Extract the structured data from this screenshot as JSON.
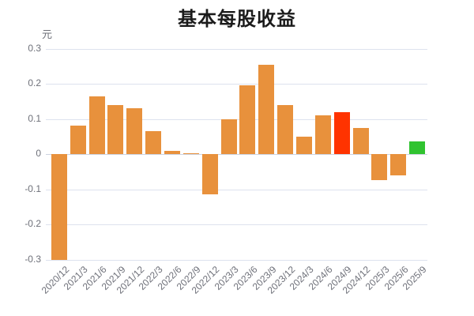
{
  "chart_data": {
    "type": "bar",
    "title": "基本每股收益",
    "unit_label": "元",
    "categories": [
      "2020/12",
      "2021/3",
      "2021/6",
      "2021/9",
      "2021/12",
      "2022/3",
      "2022/6",
      "2022/9",
      "2022/12",
      "2023/3",
      "2023/6",
      "2023/9",
      "2023/12",
      "2024/3",
      "2024/6",
      "2024/9",
      "2024/12",
      "2025/3",
      "2025/6",
      "2025/9"
    ],
    "series": [
      {
        "name": "基本每股收益",
        "values": [
          -0.3,
          0.08,
          0.165,
          0.14,
          0.13,
          0.065,
          0.01,
          0.002,
          -0.115,
          0.1,
          0.195,
          0.255,
          0.14,
          0.05,
          0.11,
          0.12,
          0.075,
          -0.075,
          -0.06,
          0.035
        ],
        "point_colors": [
          "#e8913c",
          "#e8913c",
          "#e8913c",
          "#e8913c",
          "#e8913c",
          "#e8913c",
          "#e8913c",
          "#e8913c",
          "#e8913c",
          "#e8913c",
          "#e8913c",
          "#e8913c",
          "#e8913c",
          "#e8913c",
          "#e8913c",
          "#ff3300",
          "#e8913c",
          "#e8913c",
          "#e8913c",
          "#30c330"
        ]
      }
    ],
    "xlabel": "",
    "ylabel": "元",
    "y_ticks": [
      "0.3",
      "0.2",
      "0.1",
      "0",
      "-0.1",
      "-0.2",
      "-0.3"
    ],
    "y_tick_values": [
      0.3,
      0.2,
      0.1,
      0,
      -0.1,
      -0.2,
      -0.3
    ],
    "ylim": [
      -0.3,
      0.3
    ],
    "x_label_rotation": 45,
    "grid": true,
    "legend_position": "none",
    "colors": {
      "default_bar": "#e8913c",
      "highlight_bar": "#ff3300",
      "latest_bar": "#30c330",
      "grid_line": "#dde2ee",
      "zero_line": "#ccd3e0",
      "axis_label": "#6e7079",
      "title_text": "#1b1b1b",
      "background": "#ffffff"
    }
  }
}
